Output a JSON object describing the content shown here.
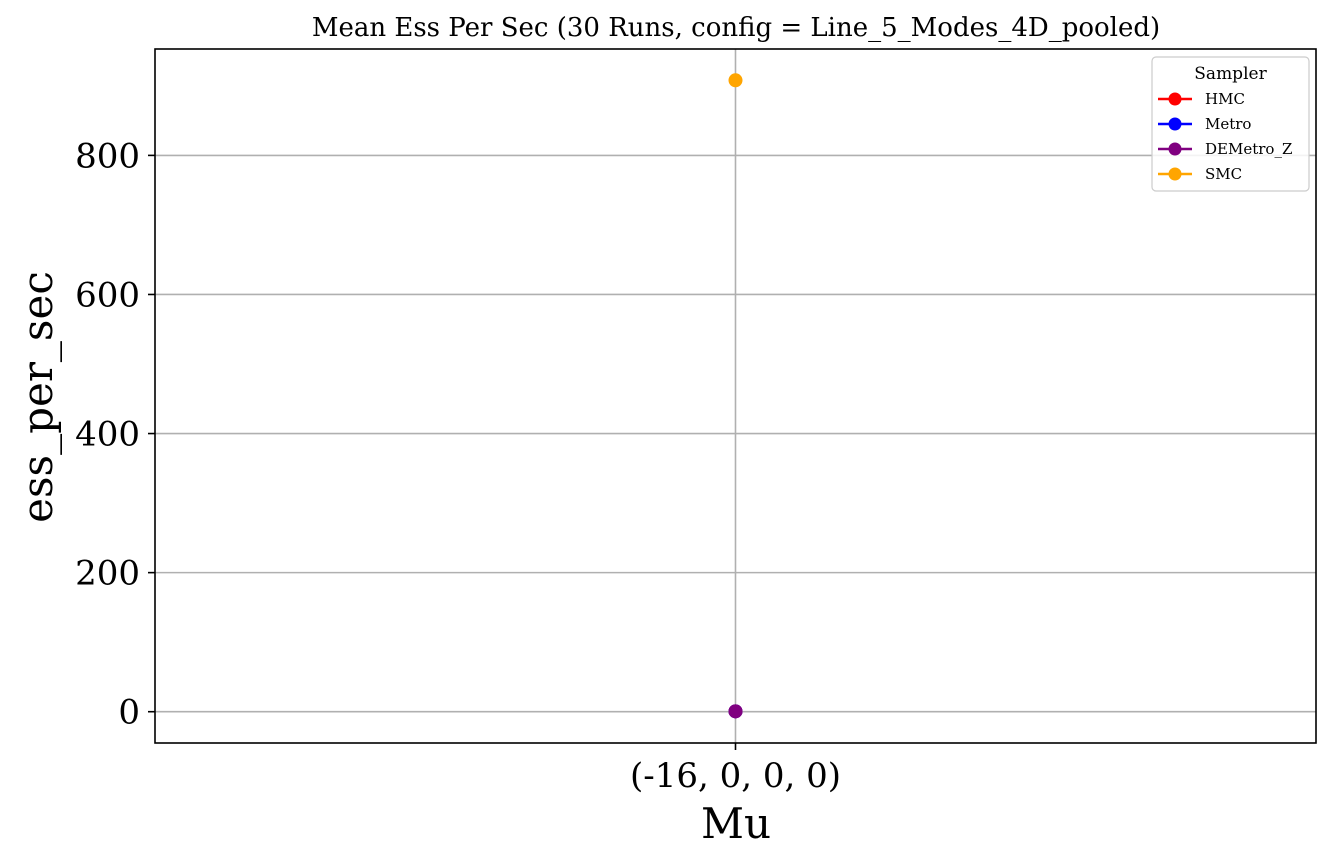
{
  "chart_data": {
    "type": "line",
    "title": "Mean Ess Per Sec (30 Runs, config = Line_5_Modes_4D_pooled)",
    "xlabel": "Mu",
    "ylabel": "ess_per_sec",
    "categories": [
      "(-16, 0, 0, 0)"
    ],
    "y_ticks": [
      0,
      200,
      400,
      600,
      800
    ],
    "y_tick_labels": [
      "0",
      "200",
      "400",
      "600",
      "800"
    ],
    "ylim": [
      -45,
      953
    ],
    "grid": true,
    "legend": {
      "title": "Sampler",
      "placement": "top-right"
    },
    "series": [
      {
        "name": "HMC",
        "color": "#ff0000",
        "values": [
          0.5
        ]
      },
      {
        "name": "Metro",
        "color": "#0000ff",
        "values": [
          0.5
        ]
      },
      {
        "name": "DEMetro_Z",
        "color": "#800080",
        "values": [
          0.5
        ]
      },
      {
        "name": "SMC",
        "color": "#ffa500",
        "values": [
          908
        ]
      }
    ]
  }
}
